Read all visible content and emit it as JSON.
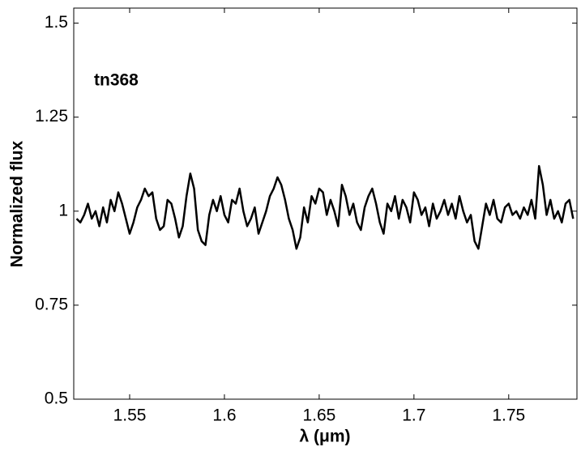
{
  "chart_data": {
    "type": "line",
    "xlabel": "λ (μm)",
    "ylabel": "Normalized flux",
    "annotation": "tn368",
    "x": [
      1.522,
      1.524,
      1.526,
      1.528,
      1.53,
      1.532,
      1.534,
      1.536,
      1.538,
      1.54,
      1.542,
      1.544,
      1.546,
      1.548,
      1.55,
      1.552,
      1.554,
      1.556,
      1.558,
      1.56,
      1.562,
      1.564,
      1.566,
      1.568,
      1.57,
      1.572,
      1.574,
      1.576,
      1.578,
      1.58,
      1.582,
      1.584,
      1.586,
      1.588,
      1.59,
      1.592,
      1.594,
      1.596,
      1.598,
      1.6,
      1.602,
      1.604,
      1.606,
      1.608,
      1.61,
      1.612,
      1.614,
      1.616,
      1.618,
      1.62,
      1.622,
      1.624,
      1.626,
      1.628,
      1.63,
      1.632,
      1.634,
      1.636,
      1.638,
      1.64,
      1.642,
      1.644,
      1.646,
      1.648,
      1.65,
      1.652,
      1.654,
      1.656,
      1.658,
      1.66,
      1.662,
      1.664,
      1.666,
      1.668,
      1.67,
      1.672,
      1.674,
      1.676,
      1.678,
      1.68,
      1.682,
      1.684,
      1.686,
      1.688,
      1.69,
      1.692,
      1.694,
      1.696,
      1.698,
      1.7,
      1.702,
      1.704,
      1.706,
      1.708,
      1.71,
      1.712,
      1.714,
      1.716,
      1.718,
      1.72,
      1.722,
      1.724,
      1.726,
      1.728,
      1.73,
      1.732,
      1.734,
      1.736,
      1.738,
      1.74,
      1.742,
      1.744,
      1.746,
      1.748,
      1.75,
      1.752,
      1.754,
      1.756,
      1.758,
      1.76,
      1.762,
      1.764,
      1.766,
      1.768,
      1.77,
      1.772,
      1.774,
      1.776,
      1.778,
      1.78,
      1.782,
      1.784
    ],
    "series": [
      {
        "color": "#000000",
        "values": [
          0.98,
          0.97,
          0.99,
          1.02,
          0.98,
          1.0,
          0.96,
          1.01,
          0.97,
          1.03,
          1.0,
          1.05,
          1.02,
          0.98,
          0.94,
          0.97,
          1.01,
          1.03,
          1.06,
          1.04,
          1.05,
          0.98,
          0.95,
          0.96,
          1.03,
          1.02,
          0.98,
          0.93,
          0.96,
          1.04,
          1.1,
          1.06,
          0.95,
          0.92,
          0.91,
          0.99,
          1.03,
          1.0,
          1.04,
          0.99,
          0.97,
          1.03,
          1.02,
          1.06,
          1.0,
          0.96,
          0.98,
          1.01,
          0.94,
          0.97,
          1.0,
          1.04,
          1.06,
          1.09,
          1.07,
          1.03,
          0.98,
          0.95,
          0.9,
          0.93,
          1.01,
          0.97,
          1.04,
          1.02,
          1.06,
          1.05,
          0.99,
          1.03,
          1.0,
          0.96,
          1.07,
          1.04,
          0.99,
          1.02,
          0.97,
          0.95,
          1.01,
          1.04,
          1.06,
          1.02,
          0.97,
          0.94,
          1.02,
          1.0,
          1.04,
          0.98,
          1.03,
          1.01,
          0.97,
          1.05,
          1.03,
          0.99,
          1.01,
          0.96,
          1.02,
          0.98,
          1.0,
          1.03,
          0.99,
          1.02,
          0.98,
          1.04,
          1.0,
          0.97,
          0.99,
          0.92,
          0.9,
          0.96,
          1.02,
          0.99,
          1.03,
          0.98,
          0.97,
          1.01,
          1.02,
          0.99,
          1.0,
          0.98,
          1.01,
          0.99,
          1.03,
          0.98,
          1.12,
          1.07,
          0.99,
          1.03,
          0.98,
          1.0,
          0.97,
          1.02,
          1.03,
          0.98
        ]
      }
    ],
    "xlim": [
      1.5205,
      1.786
    ],
    "ylim": [
      0.5,
      1.54
    ],
    "xticks": [
      1.55,
      1.6,
      1.65,
      1.7,
      1.75
    ],
    "yticks": [
      0.5,
      0.75,
      1,
      1.25,
      1.5
    ]
  }
}
